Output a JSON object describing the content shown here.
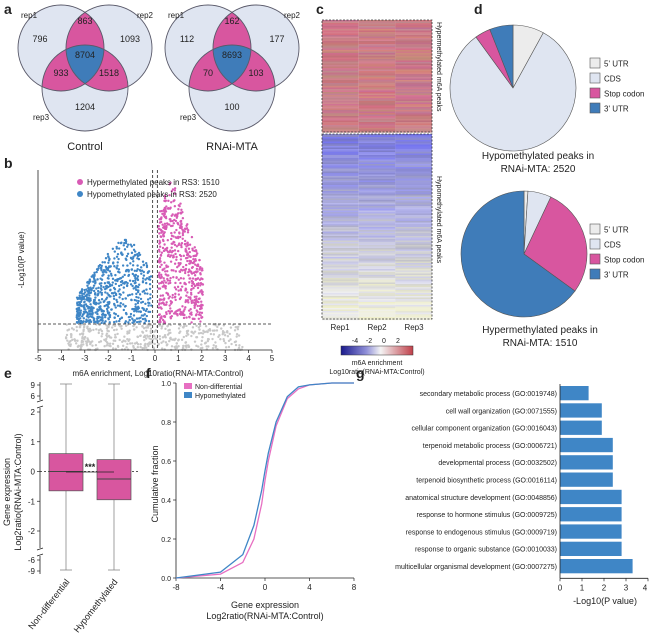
{
  "panels": {
    "a": {
      "label": "a",
      "venns": [
        {
          "title": "Control",
          "sets": [
            "rep1",
            "rep2",
            "rep3"
          ],
          "regions": {
            "rep1_only": "796",
            "rep2_only": "1093",
            "rep3_only": "1204",
            "rep1_rep2": "863",
            "rep1_rep3": "933",
            "rep2_rep3": "1518",
            "all": "8704"
          }
        },
        {
          "title": "RNAi-MTA",
          "sets": [
            "rep1",
            "rep2",
            "rep3"
          ],
          "regions": {
            "rep1_only": "112",
            "rep2_only": "177",
            "rep3_only": "100",
            "rep1_rep2": "162",
            "rep1_rep3": "70",
            "rep2_rep3": "103",
            "all": "8693"
          }
        }
      ],
      "colors": {
        "circle": "#dfe5f1",
        "pair": "#d8569f",
        "center": "#3f7cb9",
        "edge": "#5a5a6a"
      }
    },
    "b": {
      "label": "b",
      "legend": [
        "Hypermethylated peaks in RS3: 1510",
        "Hypomethylated peaks in RS3: 2520"
      ],
      "colors": {
        "hyper": "#d85bb5",
        "hypo": "#3f86c6",
        "ns": "#c8c8c8"
      },
      "ylabel": "-Log10(P value)",
      "xlabel": "m6A enrichment, Log10ratio(RNAi-MTA:Control)"
    },
    "c": {
      "label": "c",
      "columns": [
        "Rep1",
        "Rep2",
        "Rep3"
      ],
      "row_labels": [
        "Hypermethylated m6A peaks",
        "Hypomethylated m6A peaks"
      ],
      "colorbar_ticks": [
        "-4",
        "-2",
        "0",
        "2"
      ],
      "colorbar_title": "m6A enrichment",
      "colorbar_subtitle": "Log10ratio(RNAi-MTA:Control)"
    },
    "d": {
      "label": "d",
      "legend": [
        "5' UTR",
        "CDS",
        "Stop codon",
        "3' UTR"
      ],
      "colors": [
        "#ececec",
        "#dfe5f1",
        "#d8569f",
        "#3f7cb9"
      ],
      "pies": [
        {
          "title_line1": "Hypomethylated peaks in",
          "title_line2": "RNAi-MTA: 2520"
        },
        {
          "title_line1": "Hypermethylated peaks in",
          "title_line2": "RNAi-MTA: 1510"
        }
      ]
    },
    "e": {
      "label": "e",
      "ylabel_line1": "Gene expression",
      "ylabel_line2": "Log2ratio(RNAi-MTA:Control)",
      "categories": [
        "Non-differential",
        "Hypomethylated"
      ],
      "significance": "***",
      "color": "#d8569f"
    },
    "f": {
      "label": "f",
      "legend": [
        "Non-differential",
        "Hypomethylated"
      ],
      "colors": {
        "nondiff": "#e76fc2",
        "hypo": "#3f86c6"
      },
      "ylabel": "Cumulative fraction",
      "xlabel_line1": "Gene expression",
      "xlabel_line2": "Log2ratio(RNAi-MTA:Control)"
    },
    "g": {
      "label": "g",
      "color": "#3f86c6",
      "xlabel": "-Log10(P value)"
    }
  },
  "chart_data": [
    {
      "type": "scatter",
      "panel": "b",
      "x_ticks": [
        "-5",
        "-4",
        "-3",
        "-2",
        "-1",
        "0",
        "1",
        "2",
        "3",
        "4",
        "5"
      ],
      "xlim": [
        -5,
        5
      ],
      "ylim": [
        0,
        9
      ],
      "threshold_y": 1.3,
      "threshold_x": [
        -0.1,
        0.1
      ]
    },
    {
      "type": "box",
      "panel": "e",
      "y_ticks": [
        "-2",
        "-1",
        "0",
        "1",
        "2"
      ],
      "y_break_ticks": [
        "-9",
        "-6",
        "6",
        "9"
      ],
      "categories": [
        "Non-differential",
        "Hypomethylated"
      ],
      "boxes": [
        {
          "q1": -0.65,
          "median": 0.0,
          "q3": 0.6
        },
        {
          "q1": -0.95,
          "median": -0.25,
          "q3": 0.4
        }
      ],
      "ylim": [
        -2,
        2
      ]
    },
    {
      "type": "line",
      "panel": "f",
      "x_ticks": [
        "-8",
        "-4",
        "0",
        "4",
        "8"
      ],
      "y_ticks": [
        "0.0",
        "0.2",
        "0.4",
        "0.6",
        "0.8",
        "1.0"
      ],
      "xlim": [
        -8,
        8
      ],
      "ylim": [
        0,
        1
      ],
      "series": [
        {
          "name": "Non-differential",
          "points": [
            [
              -8,
              0
            ],
            [
              -4,
              0.02
            ],
            [
              -2,
              0.08
            ],
            [
              -1,
              0.2
            ],
            [
              -0.3,
              0.38
            ],
            [
              0,
              0.5
            ],
            [
              0.3,
              0.6
            ],
            [
              1,
              0.78
            ],
            [
              2,
              0.92
            ],
            [
              3,
              0.97
            ],
            [
              4,
              0.99
            ],
            [
              6,
              1
            ],
            [
              8,
              1
            ]
          ]
        },
        {
          "name": "Hypomethylated",
          "points": [
            [
              -8,
              0
            ],
            [
              -4,
              0.03
            ],
            [
              -2,
              0.12
            ],
            [
              -1,
              0.27
            ],
            [
              -0.3,
              0.45
            ],
            [
              0,
              0.55
            ],
            [
              0.3,
              0.64
            ],
            [
              1,
              0.8
            ],
            [
              2,
              0.93
            ],
            [
              3,
              0.98
            ],
            [
              4,
              0.99
            ],
            [
              6,
              1
            ],
            [
              8,
              1
            ]
          ]
        }
      ]
    },
    {
      "type": "bar",
      "panel": "g",
      "orientation": "horizontal",
      "x_ticks": [
        "0",
        "1",
        "2",
        "3",
        "4"
      ],
      "xlim": [
        0,
        4
      ],
      "categories": [
        "secondary metabolic process (GO:0019748)",
        "cell wall organization (GO:0071555)",
        "cellular component organization (GO:0016043)",
        "terpenoid metabolic process (GO:0006721)",
        "developmental process (GO:0032502)",
        "terpenoid biosynthetic process (GO:0016114)",
        "anatomical structure development (GO:0048856)",
        "response to hormone stimulus (GO:0009725)",
        "response to endogenous stimulus (GO:0009719)",
        "response to organic substance (GO:0010033)",
        "multicellular organismal development (GO:0007275)"
      ],
      "values": [
        1.3,
        1.9,
        1.9,
        2.4,
        2.4,
        2.4,
        2.8,
        2.8,
        2.8,
        2.8,
        3.3
      ]
    },
    {
      "type": "pie",
      "panel": "d-top",
      "labels": [
        "5' UTR",
        "CDS",
        "Stop codon",
        "3' UTR"
      ],
      "values": [
        8,
        82,
        4,
        6
      ]
    },
    {
      "type": "pie",
      "panel": "d-bottom",
      "labels": [
        "5' UTR",
        "CDS",
        "Stop codon",
        "3' UTR"
      ],
      "values": [
        1,
        6,
        28,
        65
      ]
    }
  ]
}
